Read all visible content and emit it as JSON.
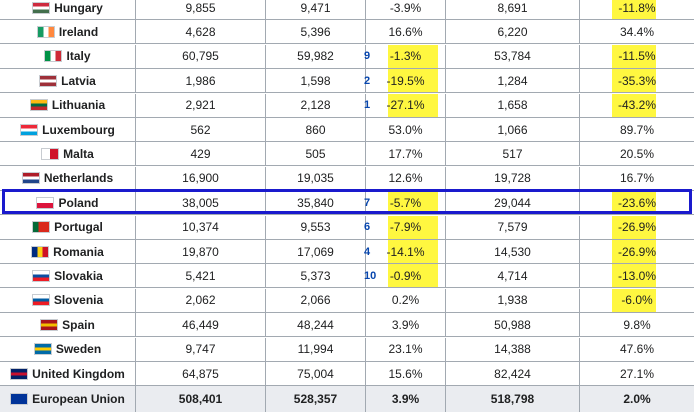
{
  "rows": [
    {
      "country": "Hungary",
      "v1": "9,855",
      "v2": "9,471",
      "rank": "",
      "change": "-3.9%",
      "v3": "8,691",
      "change2": "-11.8%",
      "hl1": false,
      "hl2": true,
      "flag": [
        "#cd2a3e",
        "#ffffff",
        "#436f4d"
      ]
    },
    {
      "country": "Ireland",
      "v1": "4,628",
      "v2": "5,396",
      "rank": "",
      "change": "16.6%",
      "v3": "6,220",
      "change2": "34.4%",
      "hl1": false,
      "hl2": false,
      "flag": [
        "#169b62",
        "#ffffff",
        "#ff883e"
      ],
      "vertical": true
    },
    {
      "country": "Italy",
      "v1": "60,795",
      "v2": "59,982",
      "rank": "9",
      "change": "-1.3%",
      "v3": "53,784",
      "change2": "-11.5%",
      "hl1": true,
      "hl2": true,
      "flag": [
        "#009246",
        "#ffffff",
        "#ce2b37"
      ],
      "vertical": true
    },
    {
      "country": "Latvia",
      "v1": "1,986",
      "v2": "1,598",
      "rank": "2",
      "change": "-19.5%",
      "v3": "1,284",
      "change2": "-35.3%",
      "hl1": true,
      "hl2": true,
      "flag": [
        "#9e3039",
        "#ffffff",
        "#9e3039"
      ]
    },
    {
      "country": "Lithuania",
      "v1": "2,921",
      "v2": "2,128",
      "rank": "1",
      "change": "-27.1%",
      "v3": "1,658",
      "change2": "-43.2%",
      "hl1": true,
      "hl2": true,
      "flag": [
        "#fdb913",
        "#006a44",
        "#c1272d"
      ]
    },
    {
      "country": "Luxembourg",
      "v1": "562",
      "v2": "860",
      "rank": "",
      "change": "53.0%",
      "v3": "1,066",
      "change2": "89.7%",
      "hl1": false,
      "hl2": false,
      "flag": [
        "#ed2939",
        "#ffffff",
        "#00a1de"
      ]
    },
    {
      "country": "Malta",
      "v1": "429",
      "v2": "505",
      "rank": "",
      "change": "17.7%",
      "v3": "517",
      "change2": "20.5%",
      "hl1": false,
      "hl2": false,
      "flag": [
        "#ffffff",
        "#cf142b"
      ],
      "vertical": true
    },
    {
      "country": "Netherlands",
      "v1": "16,900",
      "v2": "19,035",
      "rank": "",
      "change": "12.6%",
      "v3": "19,728",
      "change2": "16.7%",
      "hl1": false,
      "hl2": false,
      "flag": [
        "#ae1c28",
        "#ffffff",
        "#21468b"
      ]
    },
    {
      "country": "Poland",
      "v1": "38,005",
      "v2": "35,840",
      "rank": "7",
      "change": "-5.7%",
      "v3": "29,044",
      "change2": "-23.6%",
      "hl1": true,
      "hl2": true,
      "flag": [
        "#ffffff",
        "#dc143c"
      ]
    },
    {
      "country": "Portugal",
      "v1": "10,374",
      "v2": "9,553",
      "rank": "6",
      "change": "-7.9%",
      "v3": "7,579",
      "change2": "-26.9%",
      "hl1": true,
      "hl2": true,
      "flag": [
        "#046a38",
        "#da291c",
        "#da291c"
      ],
      "vertical": true
    },
    {
      "country": "Romania",
      "v1": "19,870",
      "v2": "17,069",
      "rank": "4",
      "change": "-14.1%",
      "v3": "14,530",
      "change2": "-26.9%",
      "hl1": true,
      "hl2": true,
      "flag": [
        "#002b7f",
        "#fcd116",
        "#ce1126"
      ],
      "vertical": true
    },
    {
      "country": "Slovakia",
      "v1": "5,421",
      "v2": "5,373",
      "rank": "10",
      "change": "-0.9%",
      "v3": "4,714",
      "change2": "-13.0%",
      "hl1": true,
      "hl2": true,
      "flag": [
        "#ffffff",
        "#0b4ea2",
        "#ee1c25"
      ]
    },
    {
      "country": "Slovenia",
      "v1": "2,062",
      "v2": "2,066",
      "rank": "",
      "change": "0.2%",
      "v3": "1,938",
      "change2": "-6.0%",
      "hl1": false,
      "hl2": true,
      "flag": [
        "#ffffff",
        "#005da4",
        "#ed1c24"
      ]
    },
    {
      "country": "Spain",
      "v1": "46,449",
      "v2": "48,244",
      "rank": "",
      "change": "3.9%",
      "v3": "50,988",
      "change2": "9.8%",
      "hl1": false,
      "hl2": false,
      "flag": [
        "#aa151b",
        "#f1bf00",
        "#aa151b"
      ]
    },
    {
      "country": "Sweden",
      "v1": "9,747",
      "v2": "11,994",
      "rank": "",
      "change": "23.1%",
      "v3": "14,388",
      "change2": "47.6%",
      "hl1": false,
      "hl2": false,
      "flag": [
        "#006aa7",
        "#fecc00",
        "#006aa7"
      ]
    },
    {
      "country": "United Kingdom",
      "v1": "64,875",
      "v2": "75,004",
      "rank": "",
      "change": "15.6%",
      "v3": "82,424",
      "change2": "27.1%",
      "hl1": false,
      "hl2": false,
      "flag": [
        "#012169",
        "#c8102e",
        "#012169"
      ]
    }
  ],
  "total": {
    "country": "European Union",
    "v1": "508,401",
    "v2": "528,357",
    "change": "3.9%",
    "v3": "518,798",
    "change2": "2.0%",
    "flag": [
      "#003399",
      "#003399",
      "#003399"
    ]
  }
}
